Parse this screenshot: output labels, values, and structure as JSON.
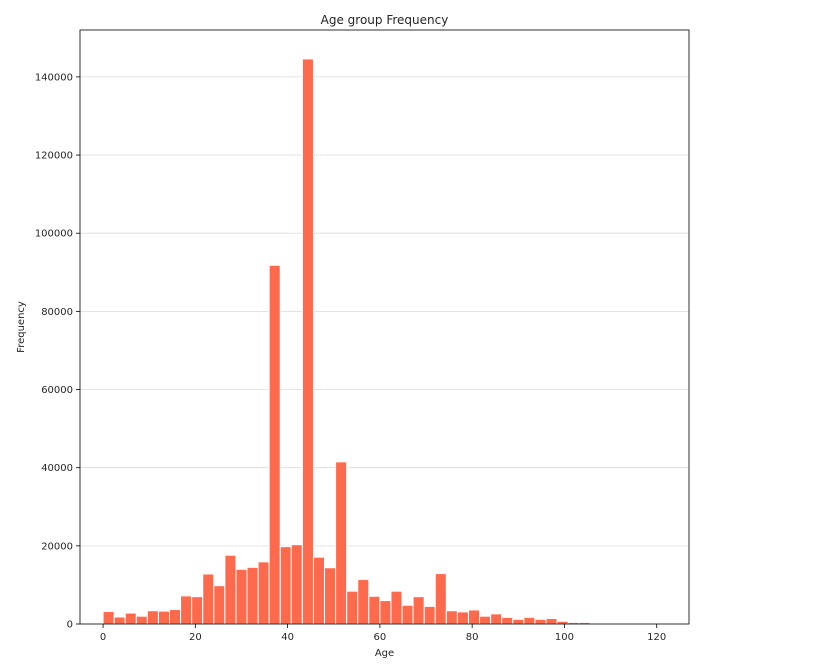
{
  "chart_data": {
    "type": "bar",
    "subtype": "histogram",
    "title": "Age group Frequency",
    "xlabel": "Age",
    "ylabel": "Frequency",
    "xlim": [
      -5,
      127
    ],
    "ylim": [
      0,
      152000
    ],
    "x_ticks": [
      0,
      20,
      40,
      60,
      80,
      100,
      120
    ],
    "y_ticks": [
      0,
      20000,
      40000,
      60000,
      80000,
      100000,
      120000,
      140000
    ],
    "bin_width": 2.4,
    "bin_start": 0,
    "values": [
      3200,
      1800,
      2800,
      2000,
      3400,
      3300,
      3700,
      7200,
      7000,
      12800,
      9800,
      17600,
      14000,
      14500,
      15900,
      91800,
      19800,
      20300,
      144600,
      17100,
      14400,
      41500,
      8400,
      11400,
      7100,
      6000,
      8400,
      4800,
      7000,
      4500,
      12900,
      3400,
      3100,
      3600,
      2000,
      2600,
      1700,
      1200,
      1700,
      1200,
      1400,
      700,
      400,
      400,
      100,
      50,
      30,
      20,
      10,
      10,
      10
    ],
    "bar_color": "#ff6a4d",
    "grid": true
  }
}
